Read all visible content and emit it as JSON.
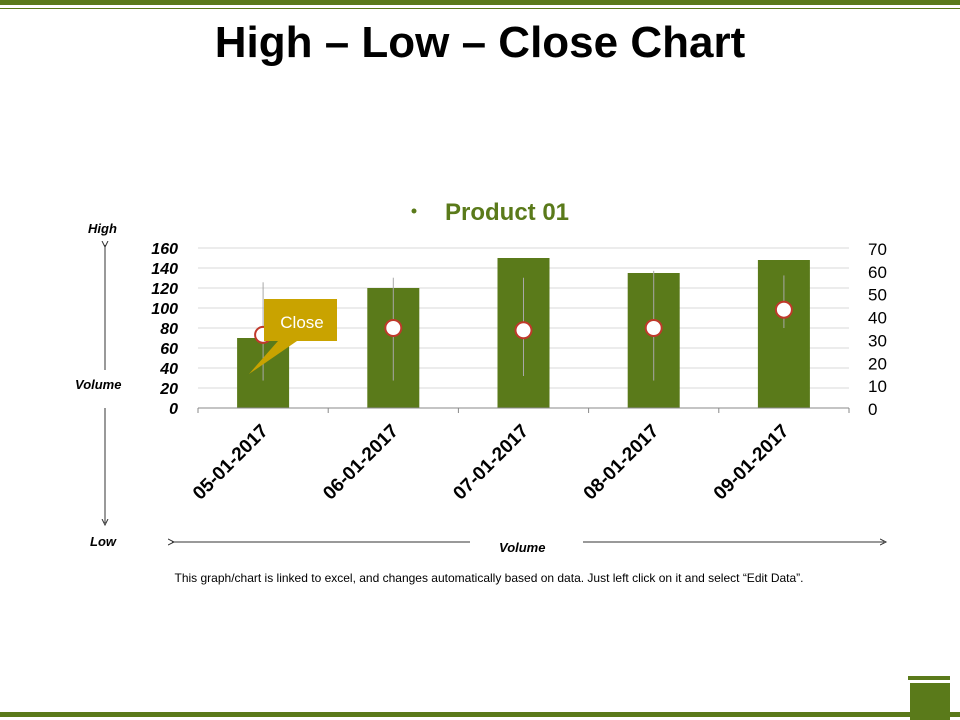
{
  "title": "High – Low – Close Chart",
  "footnote": "This graph/chart is linked to excel,  and changes automatically based on data. Just left click on it and select “Edit Data”.",
  "side_labels": {
    "high": "High",
    "volume_left": "Volume",
    "low": "Low",
    "volume_bottom": "Volume"
  },
  "colors": {
    "accent": "#5a7a1a",
    "bar": "#5a7a1a",
    "legend_text": "#5a7a1a",
    "callout": "#c9a300",
    "marker_edge": "#c0392b"
  },
  "chart_data": {
    "type": "bar",
    "legend": "Product 01",
    "categories": [
      "05-01-2017",
      "06-01-2017",
      "07-01-2017",
      "08-01-2017",
      "09-01-2017"
    ],
    "series": [
      {
        "name": "Volume",
        "axis": "left",
        "values": [
          70,
          120,
          150,
          135,
          148
        ]
      },
      {
        "axis": "right",
        "type": "high-low-close",
        "high": [
          55,
          57,
          57,
          60,
          58
        ],
        "low": [
          12,
          12,
          14,
          12,
          35
        ],
        "close": [
          32,
          35,
          34,
          35,
          43
        ]
      }
    ],
    "y_left": {
      "ylim": [
        0,
        160
      ],
      "ticks": [
        "160",
        "140",
        "120",
        "100",
        "80",
        "60",
        "40",
        "20",
        "0"
      ]
    },
    "y_right": {
      "ylim": [
        0,
        70
      ],
      "ticks": [
        "70",
        "60",
        "50",
        "40",
        "30",
        "20",
        "10",
        "0"
      ]
    },
    "annotation": "Close",
    "grid": true
  }
}
